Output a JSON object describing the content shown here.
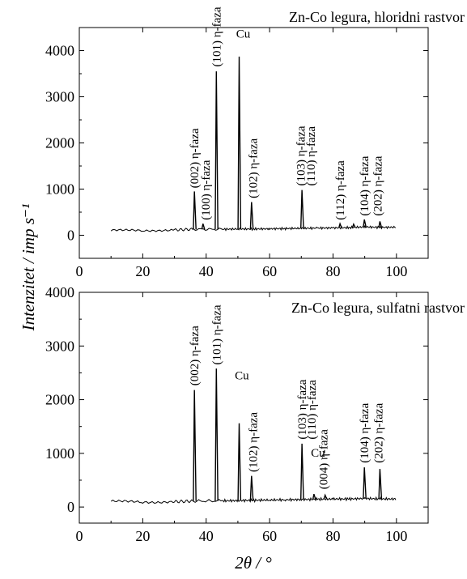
{
  "chart_data": [
    {
      "type": "line",
      "title": "Zn-Co legura, hloridni rastvor",
      "xlim": [
        0,
        110
      ],
      "ylim": [
        -500,
        4500
      ],
      "xticks": [
        0,
        20,
        40,
        60,
        80,
        100
      ],
      "yticks": [
        0,
        1000,
        2000,
        3000,
        4000
      ],
      "grid": false,
      "series_color": "#000000",
      "baseline": [
        [
          10,
          110
        ],
        [
          20,
          100
        ],
        [
          30,
          115
        ],
        [
          36,
          130
        ],
        [
          45,
          130
        ],
        [
          50,
          135
        ],
        [
          55,
          135
        ],
        [
          60,
          140
        ],
        [
          65,
          145
        ],
        [
          70,
          150
        ],
        [
          75,
          155
        ],
        [
          80,
          160
        ],
        [
          85,
          165
        ],
        [
          90,
          180
        ],
        [
          95,
          170
        ],
        [
          100,
          175
        ]
      ],
      "peaks": [
        {
          "x": 36.3,
          "y": 950
        },
        {
          "x": 39.0,
          "y": 250
        },
        {
          "x": 43.2,
          "y": 3550
        },
        {
          "x": 50.4,
          "y": 3870
        },
        {
          "x": 54.3,
          "y": 720
        },
        {
          "x": 70.2,
          "y": 980
        },
        {
          "x": 82.2,
          "y": 250
        },
        {
          "x": 86.5,
          "y": 240
        },
        {
          "x": 89.9,
          "y": 340
        },
        {
          "x": 94.8,
          "y": 300
        }
      ],
      "annotations": [
        {
          "text": "(002) η-faza",
          "x": 36.3,
          "y": 1020
        },
        {
          "text": "(100) η-faza",
          "x": 39.8,
          "y": 330
        },
        {
          "text": "(101) η-faza",
          "x": 43.2,
          "y": 3650
        },
        {
          "text": "Cu",
          "x": 50.4,
          "y": 4280
        },
        {
          "text": "(102) η-faza",
          "x": 54.8,
          "y": 800
        },
        {
          "text": "(103) η-faza",
          "x": 69.8,
          "y": 1070
        },
        {
          "text": "(110) η-faza",
          "x": 73.0,
          "y": 1070
        },
        {
          "text": "(112) η-faza",
          "x": 82.2,
          "y": 330
        },
        {
          "text": "(104) η-faza",
          "x": 89.9,
          "y": 420
        },
        {
          "text": "(202) η-faza",
          "x": 94.0,
          "y": 420
        }
      ]
    },
    {
      "type": "line",
      "title": "Zn-Co legura, sulfatni rastvor",
      "xlim": [
        0,
        110
      ],
      "ylim": [
        -300,
        4000
      ],
      "xticks": [
        0,
        20,
        40,
        60,
        80,
        100
      ],
      "yticks": [
        0,
        1000,
        2000,
        3000,
        4000
      ],
      "grid": false,
      "series_color": "#000000",
      "xlabel": "2θ / °",
      "baseline": [
        [
          10,
          110
        ],
        [
          20,
          90
        ],
        [
          30,
          100
        ],
        [
          36,
          110
        ],
        [
          45,
          115
        ],
        [
          50,
          120
        ],
        [
          55,
          125
        ],
        [
          60,
          130
        ],
        [
          65,
          135
        ],
        [
          70,
          140
        ],
        [
          75,
          145
        ],
        [
          80,
          150
        ],
        [
          85,
          150
        ],
        [
          90,
          160
        ],
        [
          95,
          150
        ],
        [
          100,
          150
        ]
      ],
      "peaks": [
        {
          "x": 36.3,
          "y": 2180
        },
        {
          "x": 43.2,
          "y": 2580
        },
        {
          "x": 50.4,
          "y": 1560
        },
        {
          "x": 54.3,
          "y": 580
        },
        {
          "x": 70.2,
          "y": 1180
        },
        {
          "x": 74.0,
          "y": 240
        },
        {
          "x": 77.5,
          "y": 220
        },
        {
          "x": 89.9,
          "y": 740
        },
        {
          "x": 94.8,
          "y": 710
        }
      ],
      "annotations": [
        {
          "text": "(002) η-faza",
          "x": 36.3,
          "y": 2260
        },
        {
          "text": "(101) η-faza",
          "x": 43.2,
          "y": 2650
        },
        {
          "text": "Cu",
          "x": 50.0,
          "y": 2380
        },
        {
          "text": "(102) η-faza",
          "x": 54.8,
          "y": 650
        },
        {
          "text": "(103) η-faza",
          "x": 70.2,
          "y": 1260
        },
        {
          "text": "(110) η-faza",
          "x": 73.3,
          "y": 1260
        },
        {
          "text": "Cu",
          "x": 74.0,
          "y": 940
        },
        {
          "text": "(004) η-faza",
          "x": 77.0,
          "y": 330
        },
        {
          "text": "(104) η-faza",
          "x": 89.9,
          "y": 820
        },
        {
          "text": "(202) η-faza",
          "x": 94.3,
          "y": 820
        }
      ]
    }
  ],
  "ylabel": "Intenzitet / imp s⁻¹"
}
